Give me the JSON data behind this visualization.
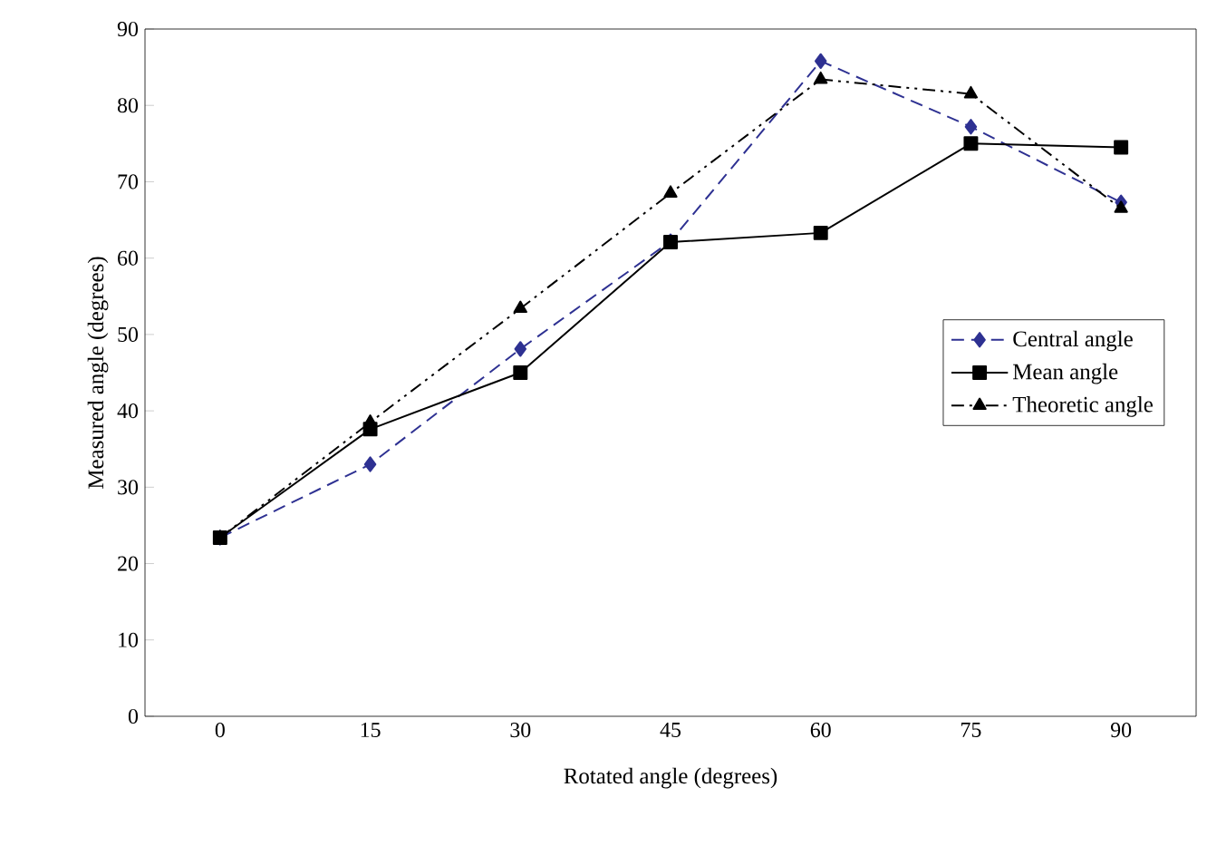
{
  "chart_data": {
    "type": "line",
    "xlabel": "Rotated angle (degrees)",
    "ylabel": "Measured angle (degrees)",
    "categories": [
      "0",
      "15",
      "30",
      "45",
      "60",
      "75",
      "90"
    ],
    "ylim": [
      0,
      90
    ],
    "yticks": [
      0,
      10,
      20,
      30,
      40,
      50,
      60,
      70,
      80,
      90
    ],
    "grid": false,
    "legend": "right",
    "series": [
      {
        "name": "Central angle",
        "color": "#2e3192",
        "marker": "diamond",
        "line_style": "dashed",
        "values": [
          23.4,
          33.0,
          48.1,
          62.2,
          85.8,
          77.2,
          67.3
        ]
      },
      {
        "name": "Mean angle",
        "color": "#000000",
        "marker": "square",
        "line_style": "solid",
        "values": [
          23.4,
          37.6,
          45.0,
          62.1,
          63.3,
          75.0,
          74.5
        ]
      },
      {
        "name": "Theoretic angle",
        "color": "#000000",
        "marker": "triangle",
        "line_style": "dashdot",
        "values": [
          23.4,
          38.5,
          53.4,
          68.5,
          83.4,
          81.5,
          66.5
        ]
      }
    ]
  }
}
